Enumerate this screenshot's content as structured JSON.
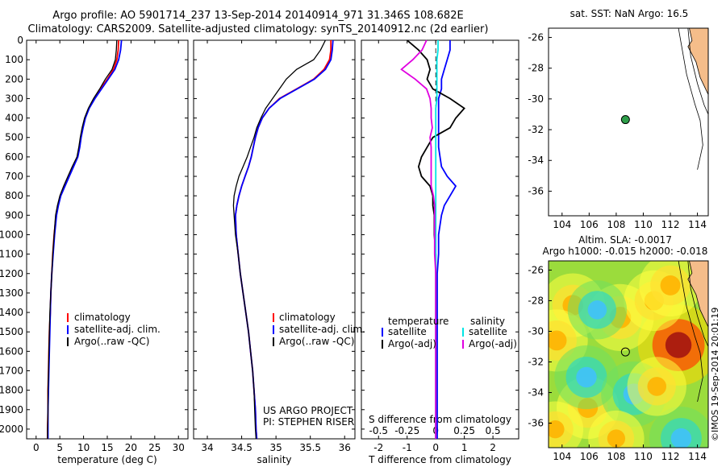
{
  "figure": {
    "title_line1": "Argo profile: AO 5901714_237 13-Sep-2014 20140914_971 31.346S 108.682E",
    "title_line2": "Climatology: CARS2009. Satellite-adjusted climatology: synTS_20140912.nc (2d earlier)",
    "timestamp": "©IMOS 19-Sep-2014 20:01:19"
  },
  "colors": {
    "climatology": "#ff0000",
    "satellite": "#0000ff",
    "argo": "#000000",
    "sal_satellite": "#00e5e5",
    "sal_argo": "#e000e0",
    "coast_land": "#f5bd8a"
  },
  "chart_data": [
    {
      "type": "line",
      "id": "temperature",
      "xlabel": "temperature (deg C)",
      "ylabel": "",
      "xlim": [
        -2,
        32
      ],
      "ylim": [
        2050,
        0
      ],
      "xticks": [
        "0",
        "5",
        "10",
        "15",
        "20",
        "25",
        "30"
      ],
      "yticks": [
        "0",
        "100",
        "200",
        "300",
        "400",
        "500",
        "600",
        "700",
        "800",
        "900",
        "1000",
        "1100",
        "1200",
        "1300",
        "1400",
        "1500",
        "1600",
        "1700",
        "1800",
        "1900",
        "2000"
      ],
      "legend": [
        "climatology",
        "satellite-adj. clim.",
        "Argo(..raw -QC)"
      ],
      "depth": [
        0,
        50,
        100,
        150,
        200,
        250,
        300,
        350,
        400,
        450,
        500,
        550,
        600,
        650,
        700,
        750,
        800,
        850,
        900,
        1000,
        1100,
        1200,
        1300,
        1400,
        1500,
        1600,
        1700,
        1800,
        1900,
        2000,
        2050
      ],
      "series": [
        {
          "name": "climatology",
          "values": [
            17.4,
            17.3,
            17.0,
            16.3,
            15.0,
            13.6,
            12.3,
            11.1,
            10.3,
            9.8,
            9.4,
            9.1,
            8.7,
            7.8,
            6.9,
            6.0,
            5.1,
            4.6,
            4.2,
            3.8,
            3.5,
            3.3,
            3.1,
            3.0,
            2.8,
            2.7,
            2.6,
            2.5,
            2.5,
            2.4,
            2.4
          ]
        },
        {
          "name": "satellite-adj. clim.",
          "values": [
            18.0,
            17.8,
            17.4,
            16.6,
            15.2,
            13.8,
            12.4,
            11.2,
            10.4,
            9.9,
            9.5,
            9.2,
            8.8,
            7.9,
            7.0,
            6.1,
            5.2,
            4.7,
            4.3,
            3.9,
            3.6,
            3.3,
            3.1,
            3.0,
            2.9,
            2.8,
            2.7,
            2.6,
            2.5,
            2.5,
            2.5
          ]
        },
        {
          "name": "Argo(..raw -QC)",
          "values": [
            17.0,
            16.9,
            16.7,
            16.0,
            14.6,
            13.4,
            12.1,
            11.0,
            10.2,
            9.7,
            9.3,
            9.0,
            8.6,
            7.6,
            6.7,
            5.8,
            5.0,
            4.5,
            4.1,
            3.8,
            3.5,
            3.3,
            3.1,
            2.9,
            2.8,
            2.7,
            2.6,
            2.5,
            2.5,
            2.4,
            2.4
          ]
        }
      ],
      "notes": []
    },
    {
      "type": "line",
      "id": "salinity",
      "xlabel": "salinity",
      "ylabel": "",
      "xlim": [
        33.8,
        36.15
      ],
      "ylim": [
        2050,
        0
      ],
      "xticks": [
        "34",
        "34.5",
        "35",
        "35.5",
        "36"
      ],
      "legend": [
        "climatology",
        "satellite-adj. clim.",
        "Argo(..raw -QC)"
      ],
      "depth": [
        0,
        50,
        100,
        150,
        200,
        250,
        300,
        350,
        400,
        450,
        500,
        550,
        600,
        650,
        700,
        750,
        800,
        850,
        900,
        1000,
        1100,
        1200,
        1300,
        1400,
        1500,
        1600,
        1700,
        1800,
        1900,
        2000,
        2050
      ],
      "series": [
        {
          "name": "climatology",
          "values": [
            35.8,
            35.8,
            35.78,
            35.7,
            35.55,
            35.3,
            35.05,
            34.9,
            34.8,
            34.74,
            34.7,
            34.67,
            34.64,
            34.6,
            34.55,
            34.5,
            34.46,
            34.43,
            34.41,
            34.42,
            34.45,
            34.48,
            34.52,
            34.56,
            34.6,
            34.63,
            34.66,
            34.68,
            34.7,
            34.71,
            34.72
          ]
        },
        {
          "name": "satellite-adj. clim.",
          "values": [
            35.83,
            35.82,
            35.8,
            35.72,
            35.56,
            35.31,
            35.06,
            34.9,
            34.8,
            34.74,
            34.7,
            34.67,
            34.64,
            34.6,
            34.55,
            34.5,
            34.46,
            34.43,
            34.41,
            34.42,
            34.45,
            34.48,
            34.52,
            34.56,
            34.6,
            34.63,
            34.66,
            34.68,
            34.7,
            34.71,
            34.72
          ]
        },
        {
          "name": "Argo(..raw -QC)",
          "values": [
            35.72,
            35.65,
            35.55,
            35.3,
            35.15,
            35.05,
            34.95,
            34.85,
            34.78,
            34.72,
            34.68,
            34.63,
            34.58,
            34.52,
            34.46,
            34.42,
            34.39,
            34.38,
            34.39,
            34.41,
            34.45,
            34.48,
            34.52,
            34.56,
            34.6,
            34.63,
            34.66,
            34.68,
            34.69,
            34.7,
            34.71
          ]
        }
      ],
      "notes": [
        "US ARGO PROJECT",
        "PI: STEPHEN RISER"
      ]
    },
    {
      "type": "line",
      "id": "difference",
      "xlabel": "T difference from climatology",
      "xlabel_top": "S difference from climatology",
      "ylabel": "",
      "xlim": [
        -2.6,
        2.9
      ],
      "ylim": [
        2050,
        0
      ],
      "xticks": [
        "-2",
        "-1",
        "0",
        "1",
        "2"
      ],
      "sal_xticks": [
        "-0.5",
        "-0.25",
        "0",
        "0.25",
        "0.5"
      ],
      "legend_temperature_title": "temperature",
      "legend_salinity_title": "salinity",
      "legend_temperature": [
        "satellite",
        "Argo(-adj)"
      ],
      "legend_salinity": [
        "satellite",
        "Argo(-adj)"
      ],
      "depth": [
        0,
        50,
        100,
        150,
        200,
        250,
        300,
        350,
        400,
        450,
        500,
        550,
        600,
        650,
        700,
        750,
        800,
        850,
        900,
        1000,
        1100,
        1200,
        1300,
        1400,
        1500,
        1600,
        1700,
        1800,
        1900,
        2000,
        2050
      ],
      "series": [
        {
          "name": "T satellite",
          "values": [
            0.5,
            0.5,
            0.4,
            0.3,
            0.2,
            0.2,
            0.1,
            0.1,
            0.1,
            0.1,
            0.1,
            0.1,
            0.15,
            0.2,
            0.4,
            0.7,
            0.5,
            0.3,
            0.2,
            0.1,
            0.1,
            0.05,
            0.05,
            0.05,
            0.05,
            0.05,
            0.05,
            0.05,
            0.05,
            0.05,
            0.05
          ]
        },
        {
          "name": "T Argo(-adj)",
          "values": [
            -1.0,
            -0.6,
            -0.3,
            -0.2,
            -0.3,
            -0.1,
            0.5,
            1.0,
            0.7,
            0.5,
            -0.1,
            -0.3,
            -0.5,
            -0.6,
            -0.5,
            -0.2,
            -0.1,
            -0.1,
            -0.05,
            -0.05,
            0.0,
            0.0,
            0.0,
            0.0,
            0.0,
            0.0,
            0.0,
            0.0,
            0.0,
            0.0,
            0.0
          ]
        },
        {
          "name": "S satellite",
          "values": [
            0.02,
            0.02,
            0.01,
            0.01,
            0.01,
            0.01,
            0.01,
            0.0,
            0.0,
            0.0,
            0.0,
            0.0,
            0.0,
            0.0,
            0.0,
            0.0,
            0.0,
            0.0,
            0.0,
            0.0,
            0.0,
            0.0,
            0.0,
            0.0,
            0.0,
            0.0,
            0.0,
            0.0,
            0.0,
            0.0,
            0.0
          ]
        },
        {
          "name": "S Argo(-adj)",
          "values": [
            -0.08,
            -0.12,
            -0.2,
            -0.3,
            -0.18,
            -0.08,
            -0.05,
            -0.04,
            -0.04,
            -0.03,
            -0.05,
            -0.04,
            -0.04,
            -0.04,
            -0.04,
            -0.04,
            -0.02,
            -0.01,
            -0.01,
            -0.01,
            -0.01,
            0.0,
            0.0,
            0.0,
            0.0,
            0.0,
            0.0,
            0.0,
            0.0,
            0.0,
            0.0
          ]
        }
      ],
      "notes": []
    },
    {
      "type": "scatter",
      "id": "sst-map",
      "title": "sat. SST: NaN  Argo: 16.5",
      "xlim": [
        103,
        114.8
      ],
      "ylim": [
        -37.6,
        -25.4
      ],
      "xticks": [
        "104",
        "106",
        "108",
        "110",
        "112",
        "114"
      ],
      "yticks": [
        "-26",
        "-28",
        "-30",
        "-32",
        "-34",
        "-36"
      ],
      "points": [
        {
          "lon": 108.682,
          "lat": -31.346
        }
      ]
    },
    {
      "type": "heatmap",
      "id": "sla-map",
      "title": "Altim. SLA: -0.0017",
      "subtitle": "Argo h1000: -0.015 h2000: -0.018",
      "xlim": [
        103,
        114.8
      ],
      "ylim": [
        -37.6,
        -25.4
      ],
      "xticks": [
        "104",
        "106",
        "108",
        "110",
        "112",
        "114"
      ],
      "yticks": [
        "-26",
        "-28",
        "-30",
        "-32",
        "-34",
        "-36"
      ],
      "points": [
        {
          "lon": 108.682,
          "lat": -31.346
        }
      ],
      "features": [
        {
          "lon": 112.6,
          "lat": -30.9,
          "level": 1.0
        },
        {
          "lon": 108.3,
          "lat": -29.1,
          "level": 0.55
        },
        {
          "lon": 104.8,
          "lat": -28.3,
          "level": 0.45
        },
        {
          "lon": 105.9,
          "lat": -35.0,
          "level": 0.4
        },
        {
          "lon": 110.8,
          "lat": -28.0,
          "level": 0.35
        },
        {
          "lon": 103.6,
          "lat": -30.6,
          "level": 0.4
        },
        {
          "lon": 105.8,
          "lat": -33.0,
          "level": -0.45
        },
        {
          "lon": 109.3,
          "lat": -34.1,
          "level": -0.5
        },
        {
          "lon": 112.8,
          "lat": -37.0,
          "level": -0.45
        },
        {
          "lon": 106.6,
          "lat": -28.6,
          "level": -0.3
        },
        {
          "lon": 111.0,
          "lat": -33.6,
          "level": 0.3
        },
        {
          "lon": 112.0,
          "lat": -27.0,
          "level": 0.4
        },
        {
          "lon": 103.5,
          "lat": -36.4,
          "level": 0.2
        },
        {
          "lon": 108.0,
          "lat": -37.0,
          "level": 0.2
        }
      ]
    }
  ]
}
